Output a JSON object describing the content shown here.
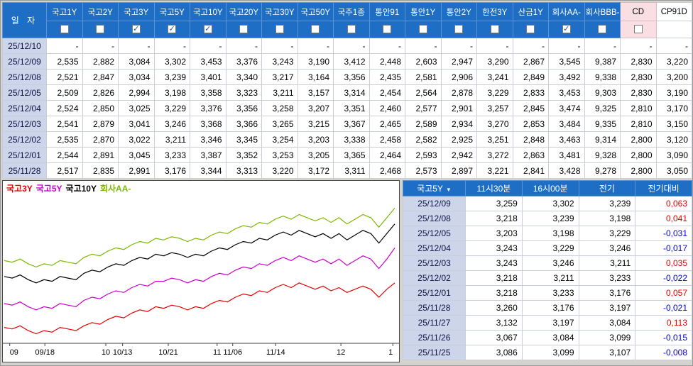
{
  "colors": {
    "header_blue": "#1e6ec6",
    "highlight_pink": "#f9dfe4",
    "datecol_bg": "#ccd5ea",
    "pos_red": "#e00000",
    "neg_blue": "#0000d0"
  },
  "top_table": {
    "date_header": "일 자",
    "columns": [
      {
        "label": "국고1Y",
        "checked": false,
        "style": "blue"
      },
      {
        "label": "국고2Y",
        "checked": false,
        "style": "blue"
      },
      {
        "label": "국고3Y",
        "checked": true,
        "style": "blue"
      },
      {
        "label": "국고5Y",
        "checked": true,
        "style": "blue"
      },
      {
        "label": "국고10Y",
        "checked": true,
        "style": "blue"
      },
      {
        "label": "국고20Y",
        "checked": false,
        "style": "blue"
      },
      {
        "label": "국고30Y",
        "checked": false,
        "style": "blue"
      },
      {
        "label": "국고50Y",
        "checked": false,
        "style": "blue"
      },
      {
        "label": "국주1종",
        "checked": false,
        "style": "blue"
      },
      {
        "label": "통안91",
        "checked": false,
        "style": "blue"
      },
      {
        "label": "통안1Y",
        "checked": false,
        "style": "blue"
      },
      {
        "label": "통안2Y",
        "checked": false,
        "style": "blue"
      },
      {
        "label": "한전3Y",
        "checked": false,
        "style": "blue"
      },
      {
        "label": "산금1Y",
        "checked": false,
        "style": "blue"
      },
      {
        "label": "회사AA-",
        "checked": true,
        "style": "blue"
      },
      {
        "label": "회사BBB-",
        "checked": false,
        "style": "blue"
      },
      {
        "label": "CD",
        "checked": false,
        "style": "pink"
      },
      {
        "label": "CP91D",
        "checked": false,
        "style": "white",
        "has_checkbox": false
      }
    ],
    "rows": [
      {
        "date": "25/12/10",
        "values": [
          "-",
          "-",
          "-",
          "-",
          "-",
          "-",
          "-",
          "-",
          "-",
          "-",
          "-",
          "-",
          "-",
          "-",
          "-",
          "-",
          "-",
          "-"
        ]
      },
      {
        "date": "25/12/09",
        "values": [
          "2,535",
          "2,882",
          "3,084",
          "3,302",
          "3,453",
          "3,376",
          "3,243",
          "3,190",
          "3,412",
          "2,448",
          "2,603",
          "2,947",
          "3,290",
          "2,867",
          "3,545",
          "9,387",
          "2,830",
          "3,220"
        ]
      },
      {
        "date": "25/12/08",
        "values": [
          "2,521",
          "2,847",
          "3,034",
          "3,239",
          "3,401",
          "3,340",
          "3,217",
          "3,164",
          "3,356",
          "2,435",
          "2,581",
          "2,906",
          "3,241",
          "2,849",
          "3,492",
          "9,338",
          "2,830",
          "3,200"
        ]
      },
      {
        "date": "25/12/05",
        "values": [
          "2,509",
          "2,826",
          "2,994",
          "3,198",
          "3,358",
          "3,323",
          "3,211",
          "3,157",
          "3,314",
          "2,454",
          "2,564",
          "2,878",
          "3,229",
          "2,833",
          "3,453",
          "9,303",
          "2,830",
          "3,190"
        ]
      },
      {
        "date": "25/12/04",
        "values": [
          "2,524",
          "2,850",
          "3,025",
          "3,229",
          "3,376",
          "3,356",
          "3,258",
          "3,207",
          "3,351",
          "2,460",
          "2,577",
          "2,901",
          "3,257",
          "2,845",
          "3,474",
          "9,325",
          "2,810",
          "3,170"
        ]
      },
      {
        "date": "25/12/03",
        "values": [
          "2,541",
          "2,879",
          "3,041",
          "3,246",
          "3,368",
          "3,366",
          "3,265",
          "3,215",
          "3,367",
          "2,465",
          "2,589",
          "2,934",
          "3,270",
          "2,853",
          "3,484",
          "9,335",
          "2,810",
          "3,150"
        ]
      },
      {
        "date": "25/12/02",
        "values": [
          "2,535",
          "2,870",
          "3,022",
          "3,211",
          "3,346",
          "3,345",
          "3,254",
          "3,203",
          "3,338",
          "2,458",
          "2,582",
          "2,925",
          "3,251",
          "2,848",
          "3,463",
          "9,314",
          "2,800",
          "3,120"
        ]
      },
      {
        "date": "25/12/01",
        "values": [
          "2,544",
          "2,891",
          "3,045",
          "3,233",
          "3,387",
          "3,352",
          "3,253",
          "3,205",
          "3,365",
          "2,464",
          "2,593",
          "2,942",
          "3,272",
          "2,863",
          "3,481",
          "9,328",
          "2,800",
          "3,090"
        ]
      },
      {
        "date": "25/11/28",
        "values": [
          "2,517",
          "2,835",
          "2,991",
          "3,176",
          "3,344",
          "3,313",
          "3,220",
          "3,172",
          "3,311",
          "2,468",
          "2,573",
          "2,897",
          "3,221",
          "2,841",
          "3,428",
          "9,278",
          "2,800",
          "3,050"
        ]
      }
    ]
  },
  "chart_data": {
    "type": "line",
    "legend_position": "top-left",
    "y_range": [
      2.7,
      3.65
    ],
    "x_labels": [
      {
        "text": "09",
        "pos": 0.014
      },
      {
        "text": "09/18",
        "pos": 0.104
      },
      {
        "text": "10",
        "pos": 0.26
      },
      {
        "text": "10/13",
        "pos": 0.303
      },
      {
        "text": "10/21",
        "pos": 0.42
      },
      {
        "text": "11",
        "pos": 0.545
      },
      {
        "text": "11/06",
        "pos": 0.585
      },
      {
        "text": "11/14",
        "pos": 0.695
      },
      {
        "text": "12",
        "pos": 0.862
      },
      {
        "text": "1",
        "pos": 0.995
      }
    ],
    "series": [
      {
        "name": "국고3Y",
        "color": "#e60000",
        "values": [
          2.8,
          2.79,
          2.81,
          2.78,
          2.76,
          2.78,
          2.77,
          2.8,
          2.79,
          2.78,
          2.81,
          2.83,
          2.82,
          2.85,
          2.87,
          2.86,
          2.89,
          2.91,
          2.9,
          2.93,
          2.92,
          2.94,
          2.93,
          2.91,
          2.93,
          2.92,
          2.95,
          2.97,
          2.96,
          2.99,
          3.01,
          3.0,
          3.03,
          3.02,
          3.05,
          3.07,
          3.05,
          3.08,
          3.06,
          3.04,
          3.06,
          3.03,
          3.05,
          3.02,
          3.04,
          3.06,
          3.04,
          2.99,
          3.04,
          3.08
        ]
      },
      {
        "name": "국고5Y",
        "color": "#cc00cc",
        "values": [
          2.95,
          2.94,
          2.96,
          2.93,
          2.91,
          2.93,
          2.92,
          2.95,
          2.94,
          2.93,
          2.97,
          2.99,
          2.98,
          3.01,
          3.03,
          3.02,
          3.05,
          3.07,
          3.06,
          3.09,
          3.09,
          3.11,
          3.1,
          3.08,
          3.1,
          3.09,
          3.12,
          3.14,
          3.13,
          3.16,
          3.18,
          3.17,
          3.2,
          3.19,
          3.22,
          3.24,
          3.22,
          3.25,
          3.23,
          3.21,
          3.23,
          3.2,
          3.23,
          3.19,
          3.22,
          3.25,
          3.23,
          3.17,
          3.23,
          3.3
        ]
      },
      {
        "name": "국고10Y",
        "color": "#000000",
        "values": [
          3.12,
          3.11,
          3.13,
          3.1,
          3.08,
          3.1,
          3.09,
          3.12,
          3.11,
          3.1,
          3.14,
          3.16,
          3.15,
          3.18,
          3.2,
          3.19,
          3.22,
          3.24,
          3.23,
          3.26,
          3.25,
          3.27,
          3.26,
          3.24,
          3.26,
          3.25,
          3.28,
          3.3,
          3.29,
          3.32,
          3.34,
          3.33,
          3.36,
          3.35,
          3.38,
          3.4,
          3.38,
          3.41,
          3.39,
          3.37,
          3.39,
          3.36,
          3.39,
          3.35,
          3.38,
          3.41,
          3.39,
          3.33,
          3.39,
          3.45
        ]
      },
      {
        "name": "회사AA-",
        "color": "#7db700",
        "values": [
          3.22,
          3.21,
          3.23,
          3.2,
          3.18,
          3.2,
          3.19,
          3.22,
          3.21,
          3.2,
          3.24,
          3.26,
          3.25,
          3.28,
          3.3,
          3.29,
          3.32,
          3.34,
          3.33,
          3.36,
          3.35,
          3.37,
          3.36,
          3.34,
          3.36,
          3.35,
          3.38,
          3.4,
          3.39,
          3.42,
          3.44,
          3.43,
          3.46,
          3.45,
          3.48,
          3.5,
          3.48,
          3.51,
          3.49,
          3.47,
          3.49,
          3.46,
          3.49,
          3.45,
          3.48,
          3.51,
          3.49,
          3.43,
          3.49,
          3.55
        ]
      }
    ]
  },
  "detail_table": {
    "headers": [
      "국고5Y",
      "11시30분",
      "16시00분",
      "전기",
      "전기대비"
    ],
    "sort_icon": "▼",
    "rows": [
      {
        "date": "25/12/09",
        "t1130": "3,259",
        "t1600": "3,302",
        "prev": "3,239",
        "diff": "0,063"
      },
      {
        "date": "25/12/08",
        "t1130": "3,218",
        "t1600": "3,239",
        "prev": "3,198",
        "diff": "0,041"
      },
      {
        "date": "25/12/05",
        "t1130": "3,203",
        "t1600": "3,198",
        "prev": "3,229",
        "diff": "-0,031"
      },
      {
        "date": "25/12/04",
        "t1130": "3,243",
        "t1600": "3,229",
        "prev": "3,246",
        "diff": "-0,017"
      },
      {
        "date": "25/12/03",
        "t1130": "3,243",
        "t1600": "3,246",
        "prev": "3,211",
        "diff": "0,035"
      },
      {
        "date": "25/12/02",
        "t1130": "3,218",
        "t1600": "3,211",
        "prev": "3,233",
        "diff": "-0,022"
      },
      {
        "date": "25/12/01",
        "t1130": "3,218",
        "t1600": "3,233",
        "prev": "3,176",
        "diff": "0,057"
      },
      {
        "date": "25/11/28",
        "t1130": "3,260",
        "t1600": "3,176",
        "prev": "3,197",
        "diff": "-0,021"
      },
      {
        "date": "25/11/27",
        "t1130": "3,132",
        "t1600": "3,197",
        "prev": "3,084",
        "diff": "0,113"
      },
      {
        "date": "25/11/26",
        "t1130": "3,067",
        "t1600": "3,084",
        "prev": "3,099",
        "diff": "-0,015"
      },
      {
        "date": "25/11/25",
        "t1130": "3,086",
        "t1600": "3,099",
        "prev": "3,107",
        "diff": "-0,008"
      }
    ]
  }
}
